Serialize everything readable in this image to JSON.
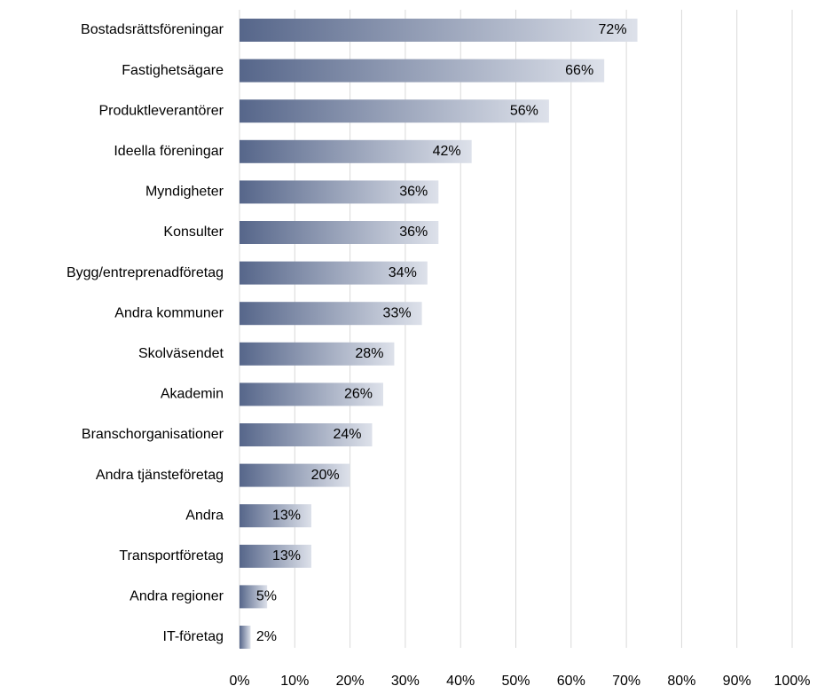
{
  "chart_data": {
    "type": "barh",
    "categories": [
      "Bostadsrättsföreningar",
      "Fastighetsägare",
      "Produktleverantörer",
      "Ideella föreningar",
      "Myndigheter",
      "Konsulter",
      "Bygg/entreprenadföretag",
      "Andra kommuner",
      "Skolväsendet",
      "Akademin",
      "Branschorganisationer",
      "Andra tjänsteföretag",
      "Andra",
      "Transportföretag",
      "Andra regioner",
      "IT-företag"
    ],
    "values": [
      72,
      66,
      56,
      42,
      36,
      36,
      34,
      33,
      28,
      26,
      24,
      20,
      13,
      13,
      5,
      2
    ],
    "value_labels": [
      "72%",
      "66%",
      "56%",
      "42%",
      "36%",
      "36%",
      "34%",
      "33%",
      "28%",
      "26%",
      "24%",
      "20%",
      "13%",
      "13%",
      "5%",
      "2%"
    ],
    "color": "#56668a",
    "gradient_end_color": "#dde1ea",
    "xlim": [
      0,
      100
    ],
    "xticks": [
      {
        "value": 0,
        "label": "0%"
      },
      {
        "value": 10,
        "label": "10%"
      },
      {
        "value": 20,
        "label": "20%"
      },
      {
        "value": 30,
        "label": "30%"
      },
      {
        "value": 40,
        "label": "40%"
      },
      {
        "value": 50,
        "label": "50%"
      },
      {
        "value": 60,
        "label": "60%"
      },
      {
        "value": 70,
        "label": "70%"
      },
      {
        "value": 80,
        "label": "80%"
      },
      {
        "value": 90,
        "label": "90%"
      },
      {
        "value": 100,
        "label": "100%"
      }
    ],
    "grid": true
  }
}
